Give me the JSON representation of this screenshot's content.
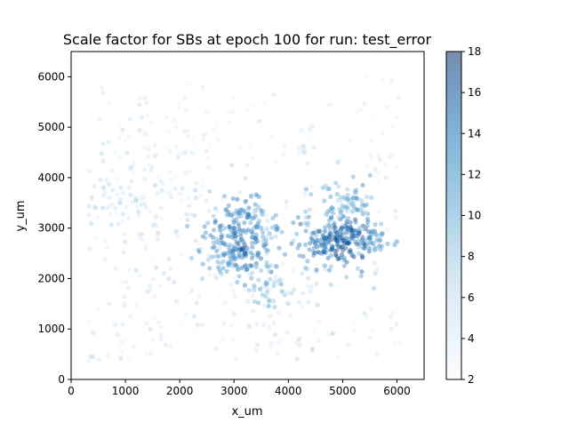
{
  "chart_data": {
    "type": "scatter",
    "title": "Scale factor for SBs at epoch 100 for run: test_error",
    "xlabel": "x_um",
    "ylabel": "y_um",
    "xlim": [
      0,
      6500
    ],
    "ylim": [
      0,
      6500
    ],
    "xticks": [
      0,
      1000,
      2000,
      3000,
      4000,
      5000,
      6000
    ],
    "yticks": [
      0,
      1000,
      2000,
      3000,
      4000,
      5000,
      6000
    ],
    "xtick_labels": [
      "0",
      "1000",
      "2000",
      "3000",
      "4000",
      "5000",
      "6000"
    ],
    "ytick_labels": [
      "0",
      "1000",
      "2000",
      "3000",
      "4000",
      "5000",
      "6000"
    ],
    "colorbar": {
      "min": 2,
      "max": 18,
      "ticks": [
        2,
        4,
        6,
        8,
        10,
        12,
        14,
        16,
        18
      ],
      "tick_labels": [
        "2",
        "4",
        "6",
        "8",
        "10",
        "12",
        "14",
        "16",
        "18"
      ],
      "colormap": "Blues"
    },
    "grid": false,
    "point_alpha": 0.4,
    "point_samples": [
      [
        400,
        450,
        5
      ],
      [
        700,
        1500,
        4
      ],
      [
        900,
        3500,
        6
      ],
      [
        1100,
        4200,
        5
      ],
      [
        1300,
        5200,
        4
      ],
      [
        1800,
        2000,
        5
      ],
      [
        2100,
        4500,
        4
      ],
      [
        2500,
        5300,
        3
      ],
      [
        2800,
        2700,
        12
      ],
      [
        3000,
        3000,
        14
      ],
      [
        3200,
        2500,
        15
      ],
      [
        3400,
        2800,
        13
      ],
      [
        3600,
        1900,
        10
      ],
      [
        3100,
        3300,
        12
      ],
      [
        2900,
        2300,
        11
      ],
      [
        3500,
        3000,
        9
      ],
      [
        4000,
        1500,
        6
      ],
      [
        4300,
        4500,
        5
      ],
      [
        4500,
        2700,
        13
      ],
      [
        4700,
        2800,
        14
      ],
      [
        4900,
        2750,
        16
      ],
      [
        5100,
        2700,
        17
      ],
      [
        5300,
        2900,
        15
      ],
      [
        5500,
        2800,
        12
      ],
      [
        4800,
        3400,
        11
      ],
      [
        5200,
        3600,
        10
      ],
      [
        5600,
        2600,
        9
      ],
      [
        5800,
        4000,
        4
      ],
      [
        6000,
        5200,
        3
      ],
      [
        5900,
        1000,
        4
      ],
      [
        4200,
        800,
        5
      ],
      [
        3000,
        1300,
        4
      ],
      [
        1600,
        2900,
        5
      ],
      [
        600,
        3800,
        6
      ],
      [
        1500,
        800,
        3
      ],
      [
        2300,
        3600,
        5
      ]
    ]
  }
}
